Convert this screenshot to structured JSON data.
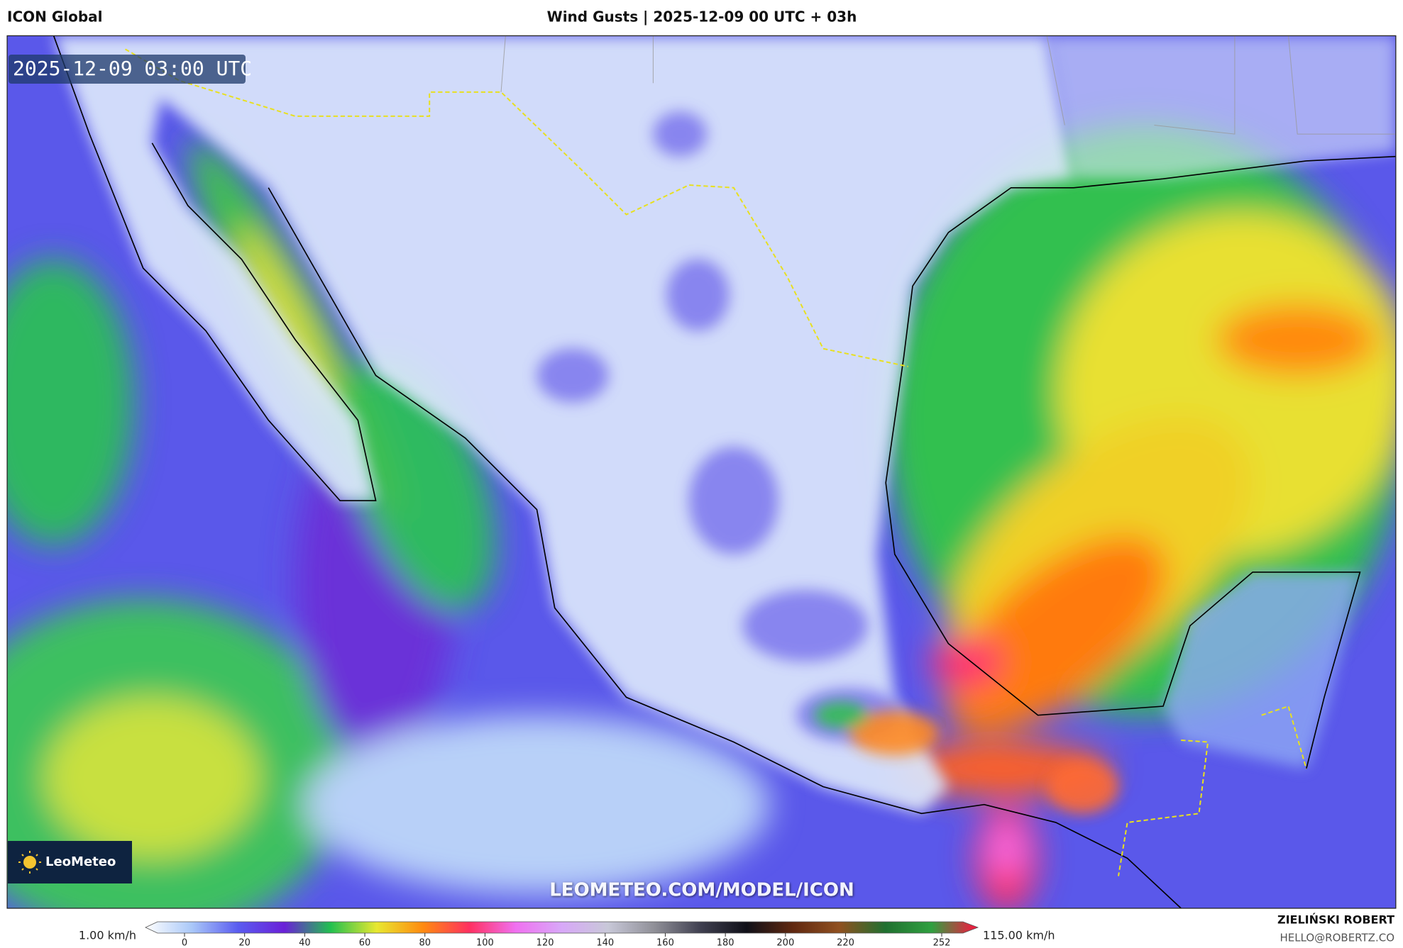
{
  "header": {
    "model": "ICON Global",
    "title": "Wind Gusts | 2025-12-09 00 UTC + 03h"
  },
  "map": {
    "timestamp": "2025-12-09 03:00 UTC",
    "logo": "LeoMeteo",
    "watermark": "LEOMETEO.COM/MODEL/ICON"
  },
  "colorbar": {
    "min_label": "1.00 km/h",
    "max_label": "115.00 km/h",
    "ticks": [
      0,
      20,
      40,
      60,
      80,
      100,
      120,
      140,
      160,
      180,
      200,
      220,
      252
    ],
    "colors": [
      "#ffffff",
      "#aac8f8",
      "#5a5cf0",
      "#6a20d8",
      "#22c050",
      "#e8e830",
      "#ff8a10",
      "#ff3060",
      "#f070f0",
      "#d8a8f8",
      "#c8c8d8",
      "#909098",
      "#404050",
      "#101018",
      "#602810",
      "#905020",
      "#207030",
      "#30a040",
      "#ff1040"
    ]
  },
  "credits": {
    "name": "ZIELIŃSKI ROBERT",
    "email": "HELLO@ROBERTZ.CO"
  }
}
